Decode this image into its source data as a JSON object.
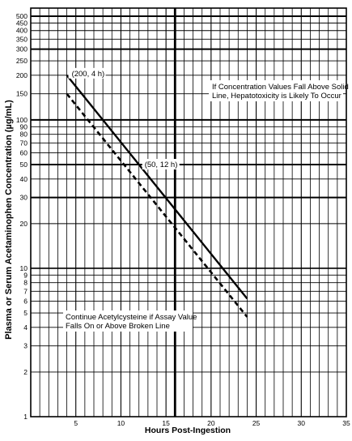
{
  "chart_data": {
    "type": "line",
    "y_scale": "log",
    "xlabel": "Hours Post-Ingestion",
    "ylabel": "Plasma or Serum Acetaminophen Concentration (µg/mL)",
    "xlim": [
      0,
      35
    ],
    "ylim": [
      1,
      500
    ],
    "grid": true,
    "x_ticks": [
      5,
      10,
      15,
      20,
      25,
      30,
      35
    ],
    "x_tick_labels": [
      "5",
      "10",
      "15",
      "20",
      "25",
      "30",
      "35"
    ],
    "y_ticks": [
      1,
      2,
      3,
      4,
      5,
      6,
      7,
      8,
      9,
      10,
      20,
      30,
      40,
      50,
      60,
      70,
      80,
      90,
      100,
      150,
      200,
      250,
      300,
      350,
      400,
      450,
      500
    ],
    "y_tick_labels": [
      "1",
      "2",
      "3",
      "4",
      "5",
      "6",
      "7",
      "8",
      "9",
      "10",
      "20",
      "30",
      "40",
      "50",
      "60",
      "70",
      "80",
      "90",
      "100",
      "150",
      "200",
      "250",
      "300",
      "350",
      "400",
      "450",
      "500"
    ],
    "x_gridlines": [
      1,
      2,
      3,
      4,
      5,
      6,
      7,
      8,
      9,
      10,
      11,
      12,
      13,
      14,
      15,
      16,
      17,
      18,
      19,
      20,
      21,
      22,
      23,
      24,
      25,
      26,
      27,
      28,
      29,
      30,
      31,
      32,
      33,
      34
    ],
    "emphasis": {
      "y_values": [
        50,
        100,
        500,
        30,
        300
      ],
      "x_values": [
        16
      ]
    },
    "series": [
      {
        "style": "solid",
        "x": [
          4,
          24
        ],
        "y": [
          200,
          6.25
        ]
      },
      {
        "style": "dashed",
        "x": [
          4,
          24
        ],
        "y": [
          150,
          4.7
        ]
      }
    ],
    "annotations": [
      {
        "text": "(200, 4 h)",
        "x": 4,
        "y": 200
      },
      {
        "text": "(50, 12 h)",
        "x": 12,
        "y": 50
      },
      {
        "lines": [
          "If Concentration Values Fall Above Solid",
          "Line, Hepatotoxicity is Likely To Occur"
        ]
      },
      {
        "lines": [
          "Continue Acetylcysteine if Assay Value",
          "Falls On or Above Broken Line"
        ]
      }
    ]
  }
}
